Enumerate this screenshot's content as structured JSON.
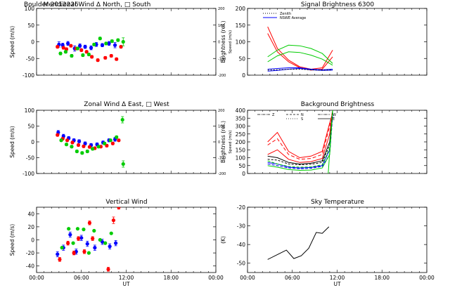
{
  "figure": {
    "header_left": "Boulder   2012226",
    "x_ticks": [
      "00:00",
      "06:00",
      "12:00",
      "18:00",
      "00:00"
    ],
    "x_label": "UT"
  },
  "chart_data": [
    {
      "id": "meridional",
      "type": "scatter",
      "title": "Meridional Wind   Δ North, □ South",
      "ylabel": "Speed (m/s)",
      "ylim": [
        -100,
        100
      ],
      "yticks": [
        -100,
        -50,
        0,
        50,
        100
      ],
      "y2label": "Speed (m/s)",
      "y2lim": [
        -200,
        200
      ],
      "y2ticks": [
        -200,
        -100,
        0,
        100,
        200
      ],
      "xlim": [
        0,
        24
      ],
      "series": [
        {
          "color": "#0000ff",
          "x": [
            3.0,
            3.5,
            4.2,
            5.1,
            5.8,
            6.5,
            7.3,
            8.0,
            8.8,
            9.7,
            10.5
          ],
          "y": [
            -8,
            -10,
            -5,
            -20,
            -12,
            -15,
            -18,
            -8,
            -10,
            -5,
            -10
          ],
          "err": [
            8,
            6,
            6,
            8,
            6,
            5,
            6,
            6,
            5,
            6,
            8
          ]
        },
        {
          "color": "#ff0000",
          "x": [
            2.8,
            3.6,
            4.0,
            4.6,
            5.3,
            6.0,
            6.7,
            7.4,
            8.2,
            9.2,
            10.0,
            10.7,
            11.3
          ],
          "y": [
            -15,
            -18,
            -22,
            -12,
            -20,
            -25,
            -30,
            -45,
            -55,
            -48,
            -42,
            -52,
            -15
          ],
          "err": [
            4,
            4,
            4,
            4,
            4,
            4,
            4,
            4,
            4,
            4,
            4,
            4,
            4
          ]
        },
        {
          "color": "#00cc00",
          "x": [
            3.2,
            3.9,
            4.7,
            5.5,
            6.2,
            7.0,
            7.7,
            8.5,
            9.3,
            10.1,
            10.9,
            11.6
          ],
          "y": [
            -35,
            -30,
            -42,
            -20,
            -40,
            -38,
            -8,
            10,
            -5,
            2,
            5,
            0
          ],
          "err": [
            4,
            4,
            4,
            4,
            4,
            4,
            4,
            4,
            4,
            4,
            4,
            12
          ]
        }
      ]
    },
    {
      "id": "signal",
      "type": "line",
      "title": "Signal Brightness       6300",
      "ylabel": "Brightness (rel.)",
      "ylim": [
        0,
        200
      ],
      "yticks": [
        0,
        50,
        100,
        150,
        200
      ],
      "xlim": [
        0,
        24
      ],
      "legend": [
        {
          "label": "Zenith",
          "style": "dotted"
        },
        {
          "label": "NSWE Average",
          "style": "solid",
          "color": "#0000ff"
        }
      ],
      "series": [
        {
          "color": "#ff0000",
          "x": [
            2.7,
            4,
            5.5,
            7,
            8.5,
            10,
            11.4
          ],
          "y": [
            145,
            80,
            45,
            25,
            18,
            22,
            75
          ]
        },
        {
          "color": "#ff0000",
          "x": [
            2.7,
            4,
            5.5,
            7,
            8.5,
            10,
            11.4
          ],
          "y": [
            125,
            70,
            40,
            22,
            15,
            18,
            55
          ]
        },
        {
          "color": "#00cc00",
          "x": [
            2.7,
            4,
            5.5,
            7,
            8.5,
            10,
            11.4
          ],
          "y": [
            55,
            75,
            90,
            88,
            80,
            65,
            35
          ]
        },
        {
          "color": "#00cc00",
          "x": [
            2.7,
            4,
            5.5,
            7,
            8.5,
            10,
            11.4
          ],
          "y": [
            40,
            58,
            70,
            68,
            60,
            48,
            30
          ]
        },
        {
          "color": "#0000ff",
          "x": [
            2.7,
            4,
            5.5,
            7,
            8.5,
            10,
            11.4
          ],
          "y": [
            12,
            14,
            18,
            20,
            16,
            14,
            15
          ]
        },
        {
          "color": "#0000ff",
          "x": [
            2.7,
            4,
            5.5,
            7,
            8.5,
            10,
            11.4
          ],
          "y": [
            18,
            20,
            22,
            22,
            18,
            16,
            18
          ]
        },
        {
          "color": "#000000",
          "dash": "2,2",
          "x": [
            2.7,
            4,
            5.5,
            7,
            8.5,
            10,
            11.4
          ],
          "y": [
            15,
            16,
            18,
            18,
            16,
            15,
            16
          ]
        }
      ]
    },
    {
      "id": "zonal",
      "type": "scatter",
      "title": "Zonal Wind       Δ East, □ West",
      "ylabel": "Speed (m/s)",
      "ylim": [
        -100,
        100
      ],
      "yticks": [
        -100,
        -50,
        0,
        50,
        100
      ],
      "y2label": "Speed (m/s)",
      "y2lim": [
        -200,
        200
      ],
      "y2ticks": [
        -200,
        -100,
        0,
        100,
        200
      ],
      "xlim": [
        0,
        24
      ],
      "series": [
        {
          "color": "#0000ff",
          "x": [
            2.9,
            3.6,
            4.3,
            5.0,
            5.7,
            6.5,
            7.3,
            8.1,
            8.9,
            9.7,
            10.5
          ],
          "y": [
            30,
            18,
            12,
            5,
            2,
            -5,
            -10,
            -8,
            -2,
            5,
            8
          ],
          "err": [
            6,
            6,
            5,
            5,
            5,
            5,
            5,
            5,
            5,
            5,
            6
          ]
        },
        {
          "color": "#ff0000",
          "x": [
            2.8,
            3.5,
            4.1,
            4.8,
            5.6,
            6.3,
            7.1,
            7.8,
            8.6,
            9.4,
            10.2,
            11.0
          ],
          "y": [
            22,
            10,
            5,
            -2,
            -10,
            -14,
            -16,
            -20,
            -15,
            -12,
            -5,
            5
          ],
          "err": [
            4,
            4,
            4,
            4,
            4,
            4,
            4,
            4,
            4,
            4,
            4,
            4
          ]
        },
        {
          "color": "#00cc00",
          "x": [
            3.3,
            4.0,
            4.7,
            5.4,
            6.1,
            6.8,
            7.5,
            8.3,
            9.1,
            9.9,
            10.7,
            11.5,
            11.6
          ],
          "y": [
            5,
            -8,
            -15,
            -30,
            -35,
            -30,
            -22,
            -15,
            -5,
            5,
            15,
            70,
            -70
          ],
          "err": [
            4,
            4,
            4,
            4,
            4,
            4,
            4,
            4,
            4,
            4,
            4,
            10,
            10
          ]
        }
      ]
    },
    {
      "id": "background",
      "type": "line",
      "title": "Background Brightness",
      "ylabel": "Brightness (rel.)",
      "ylim": [
        0,
        400
      ],
      "yticks": [
        0,
        50,
        100,
        150,
        200,
        250,
        300,
        350,
        400
      ],
      "xlim": [
        0,
        24
      ],
      "legend": [
        {
          "label": "Z",
          "style": "dash-dot"
        },
        {
          "label": "N",
          "style": "dashed"
        },
        {
          "label": "S",
          "style": "dotted"
        },
        {
          "label": "W",
          "style": "dash-dot-dot"
        },
        {
          "label": "E",
          "style": "solid"
        }
      ],
      "series": [
        {
          "color": "#ff0000",
          "x": [
            2.7,
            4,
            5.5,
            7,
            8.5,
            10,
            11,
            11.4
          ],
          "y": [
            200,
            260,
            140,
            100,
            110,
            140,
            320,
            380
          ]
        },
        {
          "color": "#ff0000",
          "dash": "5,3",
          "x": [
            2.7,
            4,
            5.5,
            7,
            8.5,
            10,
            11,
            11.4
          ],
          "y": [
            180,
            220,
            120,
            90,
            95,
            120,
            300,
            400
          ]
        },
        {
          "color": "#ff0000",
          "x": [
            2.7,
            4,
            5.5,
            7,
            8.5,
            10,
            11,
            11.4
          ],
          "y": [
            120,
            150,
            90,
            70,
            75,
            95,
            250,
            400
          ]
        },
        {
          "color": "#000000",
          "x": [
            2.7,
            4,
            5.5,
            7,
            8.5,
            10,
            11,
            11.4
          ],
          "y": [
            110,
            100,
            70,
            60,
            65,
            80,
            200,
            400
          ]
        },
        {
          "color": "#000000",
          "dash": "3,2",
          "x": [
            2.7,
            4,
            5.5,
            7,
            8.5,
            10,
            11,
            11.4
          ],
          "y": [
            90,
            85,
            60,
            55,
            58,
            70,
            180,
            400
          ]
        },
        {
          "color": "#0000ff",
          "x": [
            2.7,
            4,
            5.5,
            7,
            8.5,
            10,
            11,
            11.4
          ],
          "y": [
            70,
            60,
            40,
            35,
            38,
            50,
            150,
            380
          ]
        },
        {
          "color": "#0000ff",
          "dash": "4,2",
          "x": [
            2.7,
            4,
            5.5,
            7,
            8.5,
            10,
            11,
            11.4
          ],
          "y": [
            60,
            50,
            35,
            30,
            33,
            45,
            120,
            360
          ]
        },
        {
          "color": "#00cc00",
          "x": [
            2.7,
            4,
            5.5,
            7,
            8.5,
            10,
            11,
            11.4
          ],
          "y": [
            50,
            40,
            25,
            20,
            22,
            35,
            120,
            400
          ]
        },
        {
          "color": "#00cc00",
          "dash": "4,2",
          "x": [
            2.7,
            4,
            5.5,
            7,
            8.5,
            10,
            11,
            11.4
          ],
          "y": [
            80,
            60,
            45,
            40,
            42,
            55,
            160,
            400
          ]
        },
        {
          "color": "#00cc00",
          "x": [
            10.8,
            11.4
          ],
          "y": [
            0,
            400
          ]
        }
      ]
    },
    {
      "id": "vertical",
      "type": "scatter",
      "title": "Vertical Wind",
      "ylabel": "Speed (m/s)",
      "ylim": [
        -50,
        50
      ],
      "yticks": [
        -40,
        -20,
        0,
        20,
        40
      ],
      "xlim": [
        0,
        24
      ],
      "series": [
        {
          "color": "#0000ff",
          "x": [
            2.8,
            3.6,
            4.5,
            5.3,
            6.0,
            6.8,
            7.8,
            8.8,
            9.8,
            10.6
          ],
          "y": [
            -22,
            -12,
            8,
            -18,
            3,
            -6,
            -12,
            -3,
            -10,
            -5
          ],
          "err": [
            4,
            4,
            4,
            4,
            4,
            4,
            4,
            4,
            4,
            4
          ]
        },
        {
          "color": "#ff0000",
          "x": [
            3.1,
            4.2,
            5.0,
            5.6,
            6.4,
            7.1,
            7.5,
            9.6,
            10.3,
            11.0
          ],
          "y": [
            -30,
            -5,
            -20,
            2,
            -18,
            26,
            2,
            -45,
            30,
            50
          ],
          "err": [
            3,
            3,
            3,
            3,
            3,
            3,
            3,
            3,
            5,
            3
          ]
        },
        {
          "color": "#00cc00",
          "x": [
            3.4,
            4.3,
            4.9,
            5.5,
            6.3,
            7.0,
            7.7,
            8.5,
            9.2,
            10.0
          ],
          "y": [
            -12,
            17,
            -5,
            17,
            16,
            -20,
            14,
            0,
            -5,
            10
          ],
          "err": [
            0,
            0,
            0,
            0,
            0,
            0,
            0,
            0,
            0,
            0
          ]
        }
      ]
    },
    {
      "id": "sky",
      "type": "line",
      "title": "Sky Temperature",
      "ylabel": "(K)",
      "ylim": [
        -55,
        -20
      ],
      "yticks": [
        -50,
        -40,
        -30,
        -20
      ],
      "xlim": [
        0,
        24
      ],
      "series": [
        {
          "color": "#000000",
          "x": [
            2.7,
            4.2,
            5.2,
            6.2,
            7.2,
            8.2,
            9.2,
            10.0,
            10.9
          ],
          "y": [
            -48,
            -45,
            -43,
            -47.5,
            -46,
            -42,
            -33.5,
            -34,
            -30.5
          ]
        }
      ]
    }
  ]
}
